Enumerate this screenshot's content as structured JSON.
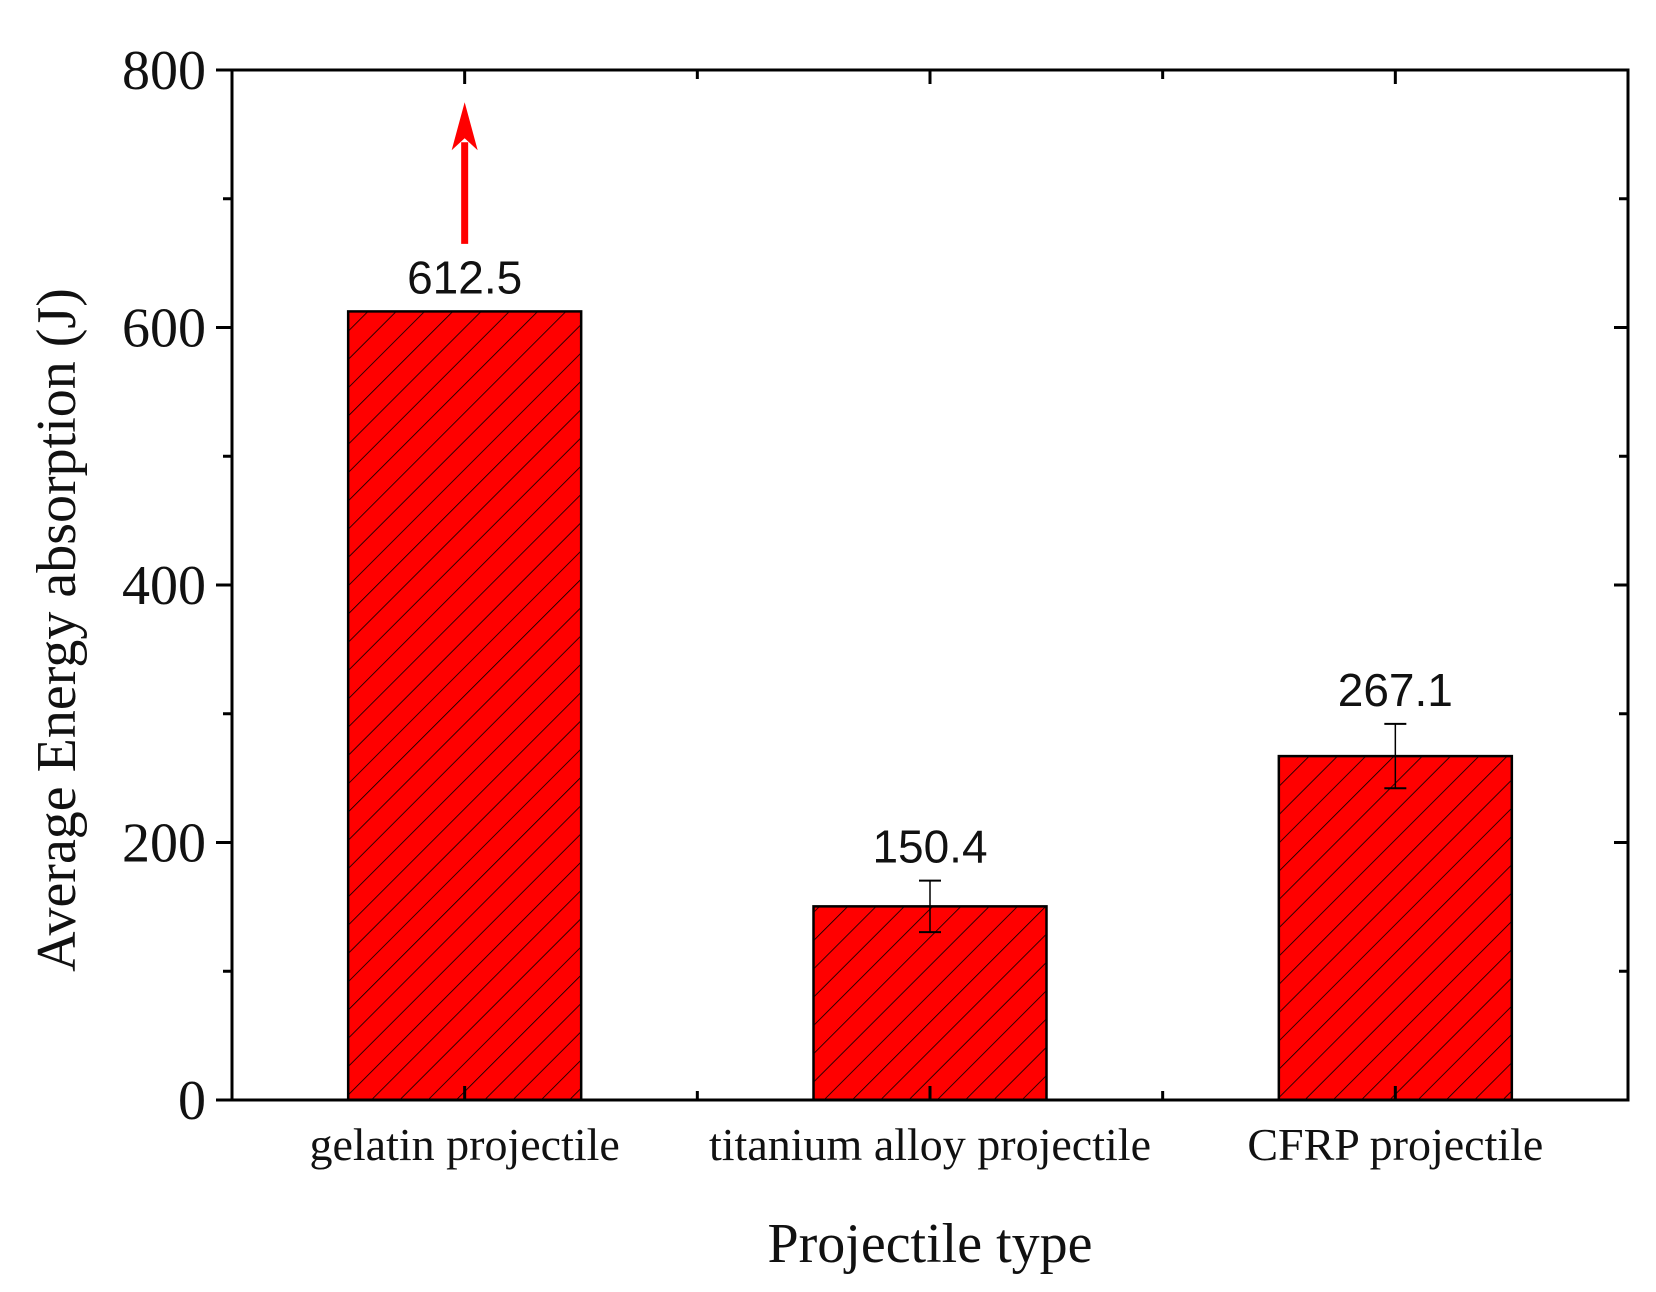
{
  "chart_data": {
    "type": "bar",
    "title": "",
    "xlabel": "Projectile type",
    "ylabel": "Average Energy absorption (J)",
    "categories": [
      "gelatin projectile",
      "titanium alloy projectile",
      "CFRP projectile"
    ],
    "values": [
      612.5,
      150.4,
      267.1
    ],
    "value_labels": [
      "612.5",
      "150.4",
      "267.1"
    ],
    "error_bars": [
      null,
      20,
      25
    ],
    "ylim": [
      0,
      800
    ],
    "yticks_major": [
      0,
      200,
      400,
      600,
      800
    ],
    "ytick_labels": [
      "0",
      "200",
      "400",
      "600",
      "800"
    ],
    "yticks_minor": [
      100,
      300,
      500,
      700
    ],
    "bar_color": "#ff0000",
    "hatch_color": "#000000",
    "arrow": {
      "category_index": 0,
      "from": 665,
      "to": 775,
      "color": "#ff0000"
    },
    "grid": false
  }
}
